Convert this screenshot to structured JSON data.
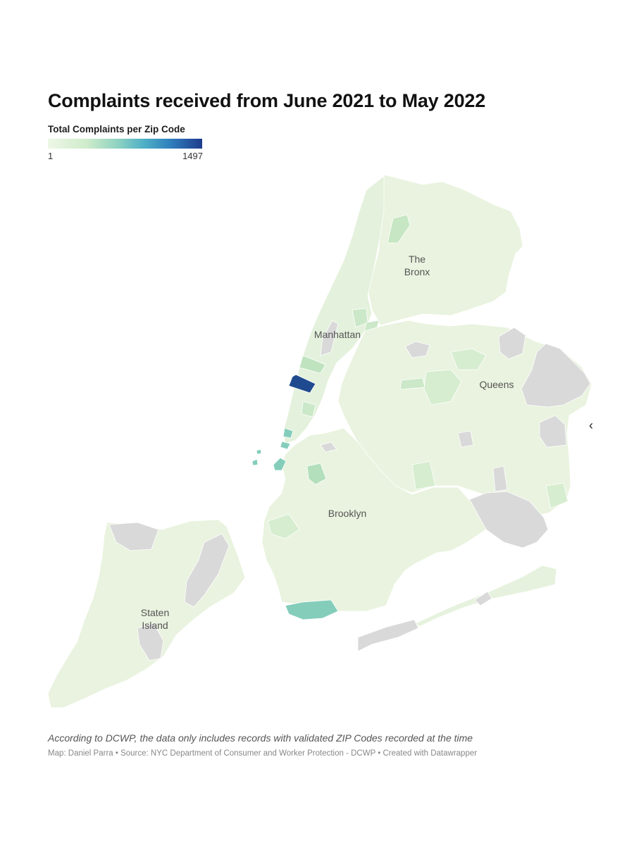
{
  "title": "Complaints received from June 2021 to May 2022",
  "legend": {
    "title": "Total Complaints per Zip Code",
    "min_label": "1",
    "max_label": "1497",
    "min_value": 1,
    "max_value": 1497,
    "color_low": "#eef7e6",
    "color_high": "#1e3c8c"
  },
  "colors": {
    "base_fill": "#e9f3df",
    "medium_fill": "#cbe8c8",
    "teal_fill": "#84cdbb",
    "high_fill": "#1f4a8f",
    "no_data_fill": "#d9d9d9",
    "label_color": "#555555"
  },
  "borough_labels": {
    "bronx_line1": "The",
    "bronx_line2": "Bronx",
    "manhattan": "Manhattan",
    "queens": "Queens",
    "brooklyn": "Brooklyn",
    "staten_line1": "Staten",
    "staten_line2": "Island"
  },
  "nav": {
    "prev_icon": "chevron-left-icon"
  },
  "footer": {
    "note": "According to DCWP, the data only includes records with validated ZIP Codes recorded at the time",
    "source": "Map: Daniel Parra • Source: NYC Department of Consumer and Worker Protection - DCWP • Created with Datawrapper"
  }
}
